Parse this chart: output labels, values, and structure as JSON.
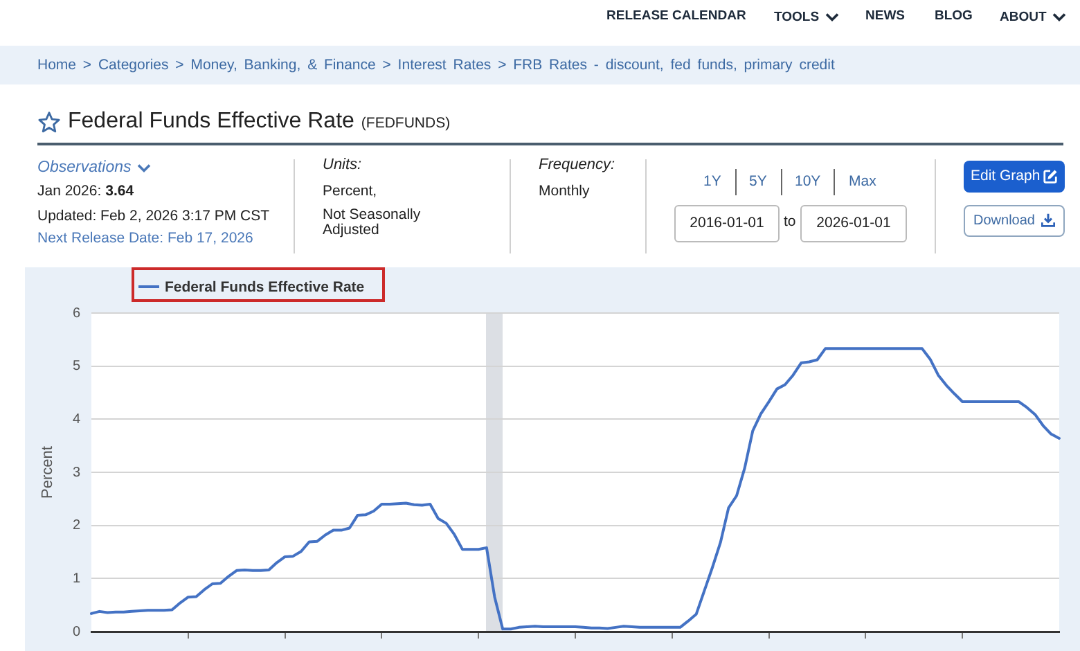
{
  "chart_data": {
    "type": "line",
    "title": "Federal Funds Effective Rate",
    "subtitle": "(FEDFUNDS)",
    "ylabel": "Percent",
    "categories": [
      null,
      null,
      null,
      null,
      null,
      null,
      null,
      null,
      null,
      null,
      null,
      null,
      null,
      null,
      null,
      null,
      null,
      null,
      null,
      null,
      null,
      null,
      null,
      null,
      null,
      null,
      null,
      null,
      null,
      null,
      null,
      null,
      null,
      null,
      null,
      null,
      null,
      null,
      null,
      null,
      null,
      null,
      null,
      null,
      null,
      null,
      null,
      null,
      null,
      null,
      null,
      null,
      null,
      null,
      null,
      null,
      null,
      null,
      null,
      null,
      null,
      null,
      null,
      null,
      null,
      null,
      null,
      null,
      null,
      null,
      null,
      null,
      null,
      null,
      null,
      null,
      null,
      null,
      null,
      null,
      null,
      null,
      null,
      null,
      null,
      null,
      null,
      null,
      null,
      null,
      null,
      null,
      null,
      null,
      null,
      null,
      null,
      null,
      null,
      null,
      null,
      null,
      null,
      null,
      null,
      null,
      null,
      null,
      null,
      null,
      null,
      null,
      null,
      null,
      null,
      null,
      null,
      null,
      null,
      null,
      null
    ],
    "series": [
      {
        "name": "Federal Funds Effective Rate",
        "color": "#4472c4",
        "values": [
          0.34,
          0.38,
          0.36,
          0.37,
          0.37,
          0.38,
          0.39,
          0.4,
          0.4,
          0.4,
          0.41,
          0.54,
          0.65,
          0.66,
          0.79,
          0.9,
          0.91,
          1.04,
          1.15,
          1.16,
          1.15,
          1.15,
          1.16,
          1.3,
          1.41,
          1.42,
          1.51,
          1.69,
          1.7,
          1.82,
          1.91,
          1.91,
          1.95,
          2.19,
          2.2,
          2.27,
          2.4,
          2.4,
          2.41,
          2.42,
          2.39,
          2.38,
          2.4,
          2.13,
          2.04,
          1.83,
          1.55,
          1.55,
          1.55,
          1.58,
          0.65,
          0.05,
          0.05,
          0.08,
          0.09,
          0.1,
          0.09,
          0.09,
          0.09,
          0.09,
          0.09,
          0.08,
          0.07,
          0.07,
          0.06,
          0.08,
          0.1,
          0.09,
          0.08,
          0.08,
          0.08,
          0.08,
          0.08,
          0.08,
          0.2,
          0.33,
          0.77,
          1.21,
          1.68,
          2.33,
          2.56,
          3.08,
          3.78,
          4.1,
          4.33,
          4.57,
          4.65,
          4.83,
          5.06,
          5.08,
          5.12,
          5.33,
          5.33,
          5.33,
          5.33,
          5.33,
          5.33,
          5.33,
          5.33,
          5.33,
          5.33,
          5.33,
          5.33,
          5.33,
          5.13,
          4.83,
          4.64,
          4.48,
          4.33,
          4.33,
          4.33,
          4.33,
          4.33,
          4.33,
          4.33,
          4.33,
          4.22,
          4.09,
          3.88,
          3.72,
          3.64
        ]
      }
    ],
    "ylim": [
      0,
      6
    ],
    "yticks": [
      0,
      1,
      2,
      3,
      4,
      5,
      6
    ],
    "grid": "y",
    "legend": "top left",
    "tick_labels": "y",
    "annotations": [
      "RELEASE CALENDAR",
      "TOOLS",
      "NEWS",
      "BLOG",
      "ABOUT",
      "Home > Categories > Money, Banking, & Finance > Interest Rates > FRB Rates - discount, fed funds, primary credit",
      "Observations",
      "Jan 2026:",
      "3.64",
      "Updated: Feb 2, 2026 3:17 PM CST",
      "Next Release Date: Feb 17, 2026",
      "Units:",
      "Percent,",
      "Not Seasonally Adjusted",
      "Frequency:",
      "Monthly",
      "1Y",
      "5Y",
      "10Y",
      "Max",
      "2016-01-01",
      "to",
      "2026-01-01",
      "Edit Graph",
      "Download"
    ]
  }
}
